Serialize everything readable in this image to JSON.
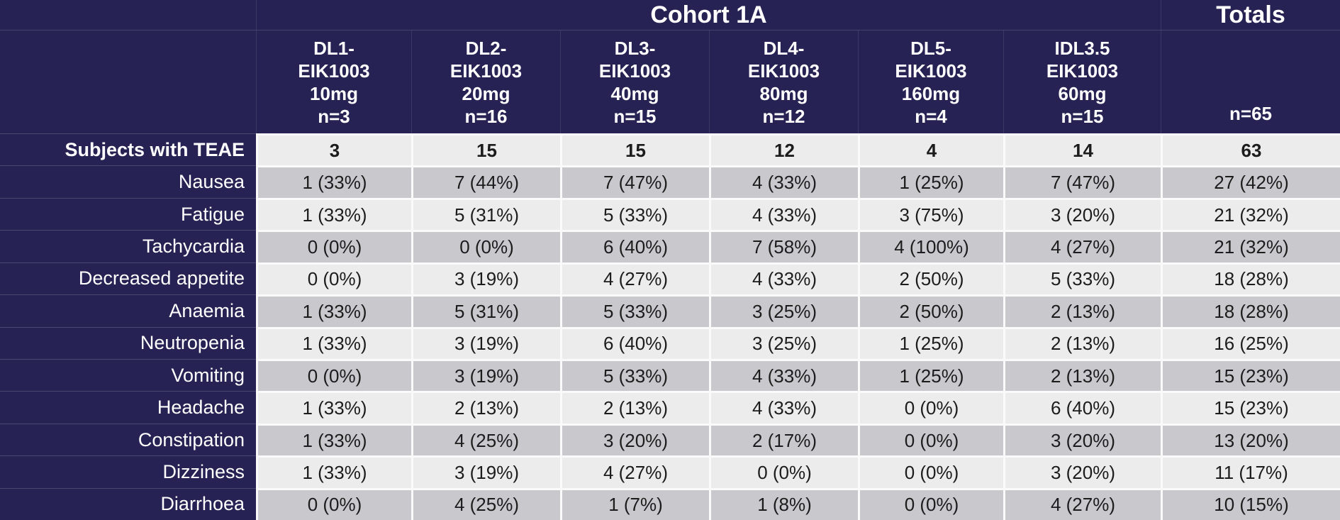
{
  "chart_data": {
    "type": "table",
    "title": "Cohort 1A",
    "totals": {
      "title": "Totals",
      "n": "n=65"
    },
    "columns": [
      {
        "lines": [
          "DL1-",
          "EIK1003",
          "10mg",
          "n=3"
        ]
      },
      {
        "lines": [
          "DL2-",
          "EIK1003",
          "20mg",
          "n=16"
        ]
      },
      {
        "lines": [
          "DL3-",
          "EIK1003",
          "40mg",
          "n=15"
        ]
      },
      {
        "lines": [
          "DL4-",
          "EIK1003",
          "80mg",
          "n=12"
        ]
      },
      {
        "lines": [
          "DL5-",
          "EIK1003",
          "160mg",
          "n=4"
        ]
      },
      {
        "lines": [
          "IDL3.5",
          "EIK1003",
          "60mg",
          "n=15"
        ]
      }
    ],
    "rows": [
      {
        "label": "Subjects with TEAE",
        "emphasis": true,
        "values": [
          "3",
          "15",
          "15",
          "12",
          "4",
          "14",
          "63"
        ]
      },
      {
        "label": "Nausea",
        "values": [
          "1 (33%)",
          "7 (44%)",
          "7 (47%)",
          "4 (33%)",
          "1 (25%)",
          "7 (47%)",
          "27 (42%)"
        ]
      },
      {
        "label": "Fatigue",
        "values": [
          "1 (33%)",
          "5 (31%)",
          "5 (33%)",
          "4 (33%)",
          "3 (75%)",
          "3 (20%)",
          "21 (32%)"
        ]
      },
      {
        "label": "Tachycardia",
        "values": [
          "0 (0%)",
          "0 (0%)",
          "6 (40%)",
          "7 (58%)",
          "4 (100%)",
          "4 (27%)",
          "21 (32%)"
        ]
      },
      {
        "label": "Decreased appetite",
        "values": [
          "0 (0%)",
          "3 (19%)",
          "4 (27%)",
          "4 (33%)",
          "2 (50%)",
          "5 (33%)",
          "18 (28%)"
        ]
      },
      {
        "label": "Anaemia",
        "values": [
          "1 (33%)",
          "5 (31%)",
          "5 (33%)",
          "3 (25%)",
          "2 (50%)",
          "2 (13%)",
          "18 (28%)"
        ]
      },
      {
        "label": "Neutropenia",
        "values": [
          "1 (33%)",
          "3 (19%)",
          "6 (40%)",
          "3 (25%)",
          "1 (25%)",
          "2 (13%)",
          "16 (25%)"
        ]
      },
      {
        "label": "Vomiting",
        "values": [
          "0 (0%)",
          "3 (19%)",
          "5 (33%)",
          "4 (33%)",
          "1 (25%)",
          "2 (13%)",
          "15 (23%)"
        ]
      },
      {
        "label": "Headache",
        "values": [
          "1 (33%)",
          "2 (13%)",
          "2 (13%)",
          "4 (33%)",
          "0 (0%)",
          "6 (40%)",
          "15 (23%)"
        ]
      },
      {
        "label": "Constipation",
        "values": [
          "1 (33%)",
          "4 (25%)",
          "3 (20%)",
          "2 (17%)",
          "0 (0%)",
          "3 (20%)",
          "13 (20%)"
        ]
      },
      {
        "label": "Dizziness",
        "values": [
          "1 (33%)",
          "3 (19%)",
          "4 (27%)",
          "0 (0%)",
          "0 (0%)",
          "3 (20%)",
          "11 (17%)"
        ]
      },
      {
        "label": "Diarrhoea",
        "values": [
          "0 (0%)",
          "4 (25%)",
          "1 (7%)",
          "1 (8%)",
          "0 (0%)",
          "4 (27%)",
          "10 (15%)"
        ]
      }
    ],
    "colors": {
      "header_navy": "#262253",
      "row_light": "#ececec",
      "row_dark": "#c9c9cd",
      "gridline_white": "#fafafa",
      "text_white": "#ffffff",
      "text_dark": "#1c1c1c"
    }
  }
}
